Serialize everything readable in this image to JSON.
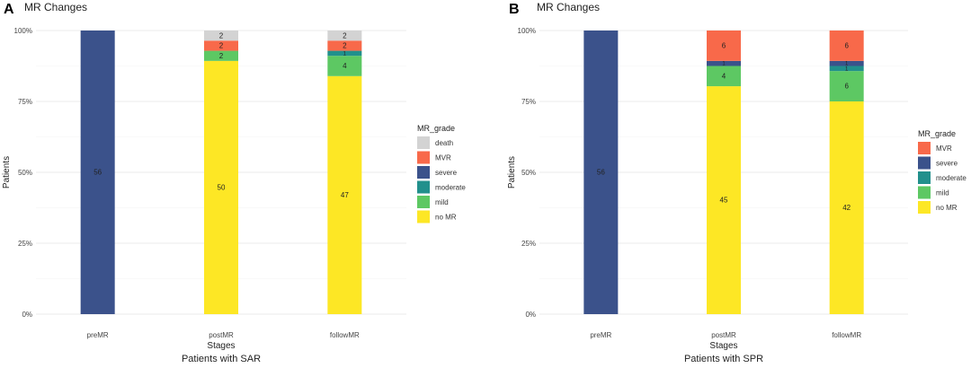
{
  "grade_colors": {
    "death": "#d3d3d3",
    "MVR": "#f8694a",
    "severe": "#3b528b",
    "moderate": "#21908c",
    "mild": "#5dc863",
    "no MR": "#fde725"
  },
  "chart_data": [
    {
      "panel_label": "A",
      "type": "bar",
      "stacked": true,
      "normalized": true,
      "title": "MR Changes",
      "xlabel": "Stages",
      "ylabel": "Patients",
      "caption": "Patients with SAR",
      "categories": [
        "preMR",
        "postMR",
        "followMR"
      ],
      "y_ticks": [
        "0%",
        "25%",
        "50%",
        "75%",
        "100%"
      ],
      "ylim": [
        0,
        1
      ],
      "grid": true,
      "legend": {
        "title": "MR_grade",
        "placement": "right",
        "items": [
          "death",
          "MVR",
          "severe",
          "moderate",
          "mild",
          "no MR"
        ]
      },
      "stack_order_bottom_to_top": [
        "no MR",
        "mild",
        "moderate",
        "severe",
        "MVR",
        "death"
      ],
      "series": [
        {
          "name": "no MR",
          "values": [
            0,
            50,
            47
          ]
        },
        {
          "name": "mild",
          "values": [
            0,
            2,
            4
          ]
        },
        {
          "name": "moderate",
          "values": [
            0,
            0,
            1
          ]
        },
        {
          "name": "severe",
          "values": [
            56,
            0,
            0
          ]
        },
        {
          "name": "MVR",
          "values": [
            0,
            2,
            2
          ]
        },
        {
          "name": "death",
          "values": [
            0,
            2,
            2
          ]
        }
      ]
    },
    {
      "panel_label": "B",
      "type": "bar",
      "stacked": true,
      "normalized": true,
      "title": "MR Changes",
      "xlabel": "Stages",
      "ylabel": "Patients",
      "caption": "Patients with SPR",
      "categories": [
        "preMR",
        "postMR",
        "followMR"
      ],
      "y_ticks": [
        "0%",
        "25%",
        "50%",
        "75%",
        "100%"
      ],
      "ylim": [
        0,
        1
      ],
      "grid": true,
      "legend": {
        "title": "MR_grade",
        "placement": "right",
        "items": [
          "MVR",
          "severe",
          "moderate",
          "mild",
          "no MR"
        ]
      },
      "stack_order_bottom_to_top": [
        "no MR",
        "mild",
        "moderate",
        "severe",
        "MVR"
      ],
      "series": [
        {
          "name": "no MR",
          "values": [
            0,
            45,
            42
          ]
        },
        {
          "name": "mild",
          "values": [
            0,
            4,
            6
          ]
        },
        {
          "name": "moderate",
          "values": [
            0,
            0,
            1
          ]
        },
        {
          "name": "severe",
          "values": [
            56,
            1,
            1
          ]
        },
        {
          "name": "MVR",
          "values": [
            0,
            6,
            6
          ]
        }
      ]
    }
  ]
}
